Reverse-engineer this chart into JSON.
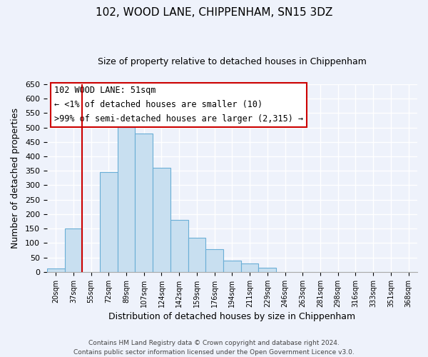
{
  "title": "102, WOOD LANE, CHIPPENHAM, SN15 3DZ",
  "subtitle": "Size of property relative to detached houses in Chippenham",
  "xlabel": "Distribution of detached houses by size in Chippenham",
  "ylabel": "Number of detached properties",
  "bar_labels": [
    "20sqm",
    "37sqm",
    "55sqm",
    "72sqm",
    "89sqm",
    "107sqm",
    "124sqm",
    "142sqm",
    "159sqm",
    "176sqm",
    "194sqm",
    "211sqm",
    "229sqm",
    "246sqm",
    "263sqm",
    "281sqm",
    "298sqm",
    "316sqm",
    "333sqm",
    "351sqm",
    "368sqm"
  ],
  "bar_values": [
    13,
    150,
    0,
    345,
    515,
    480,
    360,
    180,
    118,
    78,
    40,
    30,
    15,
    0,
    0,
    0,
    0,
    0,
    0,
    0,
    0
  ],
  "bar_color": "#c8dff0",
  "bar_edge_color": "#6aaed6",
  "marker_color": "#cc0000",
  "marker_index": 2,
  "ylim": [
    0,
    650
  ],
  "yticks": [
    0,
    50,
    100,
    150,
    200,
    250,
    300,
    350,
    400,
    450,
    500,
    550,
    600,
    650
  ],
  "annotation_title": "102 WOOD LANE: 51sqm",
  "annotation_line1": "← <1% of detached houses are smaller (10)",
  "annotation_line2": ">99% of semi-detached houses are larger (2,315) →",
  "annotation_box_color": "#ffffff",
  "annotation_box_edge": "#cc0000",
  "footer_line1": "Contains HM Land Registry data © Crown copyright and database right 2024.",
  "footer_line2": "Contains public sector information licensed under the Open Government Licence v3.0.",
  "bg_color": "#eef2fb",
  "plot_bg_color": "#eef2fb",
  "grid_color": "#ffffff",
  "title_fontsize": 11,
  "subtitle_fontsize": 9
}
